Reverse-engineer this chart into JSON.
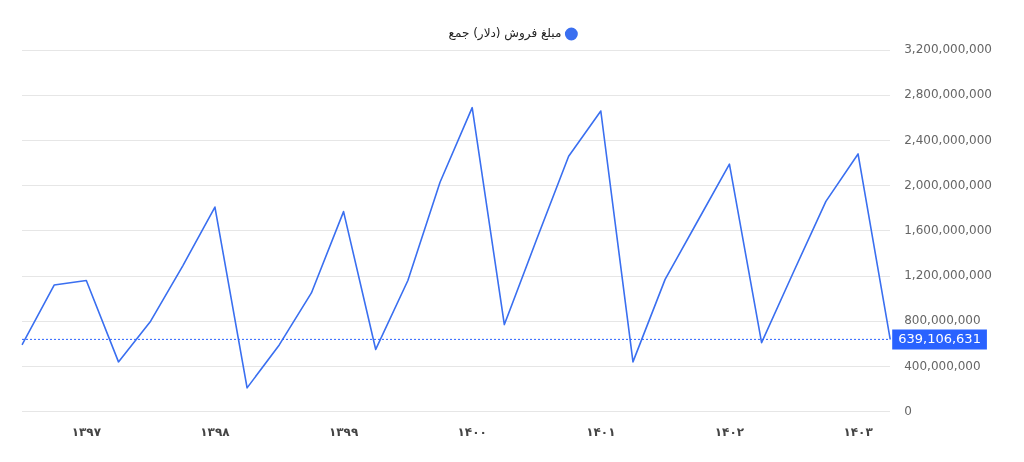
{
  "chart_data": {
    "type": "line",
    "categories": [
      null,
      null,
      "۱۳۹۷",
      null,
      null,
      null,
      "۱۳۹۸",
      null,
      null,
      null,
      "۱۳۹۹",
      null,
      null,
      null,
      "۱۴۰۰",
      null,
      null,
      null,
      "۱۴۰۱",
      null,
      null,
      null,
      "۱۴۰۲",
      null,
      null,
      null,
      "۱۴۰۳",
      null
    ],
    "series": [
      {
        "name": "مبلغ فروش (دلار) جمع",
        "color": "#3a6ff0",
        "values": [
          590000000,
          1120000000,
          1160000000,
          440000000,
          800000000,
          1290000000,
          1810000000,
          210000000,
          590000000,
          1050000000,
          1770000000,
          550000000,
          1160000000,
          2030000000,
          2690000000,
          770000000,
          1520000000,
          2260000000,
          2660000000,
          440000000,
          1170000000,
          1680000000,
          2190000000,
          610000000,
          1240000000,
          1860000000,
          2280000000,
          639106631
        ]
      }
    ],
    "ylim": [
      0,
      3200000000
    ],
    "yticks": [
      0,
      {
        "value": 400000000,
        "label": "400,000,000"
      },
      {
        "value": 800000000,
        "label": "800,000,000"
      },
      {
        "value": 1200000000,
        "label": "1,200,000,000"
      },
      {
        "value": 1600000000,
        "label": "1,600,000,000"
      },
      {
        "value": 2000000000,
        "label": "2,000,000,000"
      },
      {
        "value": 2400000000,
        "label": "2,400,000,000"
      },
      {
        "value": 2800000000,
        "label": "2,800,000,000"
      },
      {
        "value": 3200000000,
        "label": "3,200,000,000"
      }
    ],
    "ref_lines": [
      {
        "axis": "y",
        "value": 639106631,
        "label": "639,106,631",
        "color": "#2962ff",
        "line_style": "dotted"
      }
    ],
    "grid": "y",
    "legend": "top",
    "marker": "none",
    "line_style": "solid"
  }
}
